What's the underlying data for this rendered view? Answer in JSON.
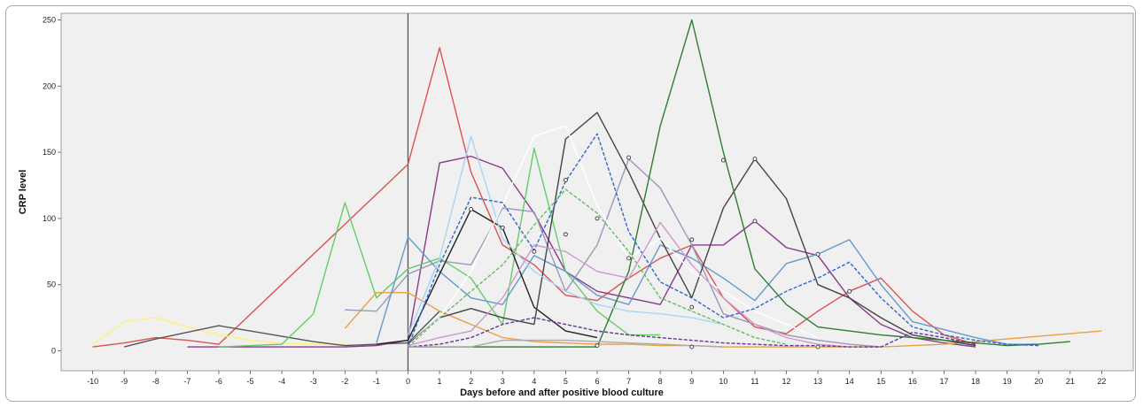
{
  "chart_data": {
    "type": "line",
    "title": "",
    "xlabel": "Days before and after positive blood culture",
    "ylabel": "CRP level",
    "xlim": [
      -11,
      23
    ],
    "ylim": [
      -15,
      255
    ],
    "x_ticks": [
      -10,
      -9,
      -8,
      -7,
      -6,
      -5,
      -4,
      -3,
      -2,
      -1,
      0,
      1,
      2,
      3,
      4,
      5,
      6,
      7,
      8,
      9,
      10,
      11,
      12,
      13,
      14,
      15,
      16,
      17,
      18,
      19,
      20,
      21,
      22
    ],
    "y_ticks": [
      0,
      50,
      100,
      150,
      200,
      250
    ],
    "grid": false,
    "legend": "none",
    "reference_line_x": 0,
    "series": [
      {
        "color": "#d9534f",
        "style": "solid",
        "x": [
          -10,
          -9,
          -8,
          -7,
          -6,
          0,
          1,
          2,
          3,
          4,
          5,
          6,
          7,
          8,
          9,
          10,
          11,
          12,
          13,
          14,
          15,
          16,
          17,
          18
        ],
        "y": [
          3,
          6,
          10,
          8,
          5,
          141,
          229,
          135,
          80,
          65,
          42,
          38,
          55,
          70,
          80,
          40,
          18,
          13,
          30,
          45,
          55,
          30,
          12,
          5
        ]
      },
      {
        "color": "#fff176",
        "style": "solid",
        "x": [
          -10,
          -9,
          -8,
          -7,
          -6,
          -5,
          -4,
          -3,
          -2
        ],
        "y": [
          5,
          22,
          25,
          18,
          12,
          8,
          6,
          5,
          5
        ]
      },
      {
        "color": "#555555",
        "style": "solid",
        "x": [
          -9,
          -8,
          -7,
          -6,
          -5,
          -4,
          -3,
          -2,
          -1,
          0,
          1
        ],
        "y": [
          3,
          9,
          14,
          19,
          15,
          11,
          7,
          4,
          5,
          6,
          30
        ]
      },
      {
        "color": "#8a3a8a",
        "style": "solid",
        "x": [
          -7,
          -6,
          -5,
          -4,
          -3,
          -2,
          -1,
          0,
          1,
          2,
          3,
          4,
          5,
          6,
          7,
          8,
          9,
          10,
          11,
          12,
          13,
          14,
          15,
          16,
          17,
          18
        ],
        "y": [
          3,
          3,
          3,
          3,
          3,
          3,
          4,
          8,
          142,
          147,
          138,
          104,
          60,
          45,
          40,
          35,
          80,
          80,
          98,
          78,
          72,
          40,
          20,
          10,
          6,
          3
        ]
      },
      {
        "color": "#66cc66",
        "style": "solid",
        "x": [
          -6,
          -4,
          -3,
          -2,
          -1,
          0,
          1,
          2,
          3,
          4,
          5,
          6,
          7,
          8
        ],
        "y": [
          3,
          5,
          28,
          112,
          40,
          62,
          70,
          55,
          20,
          153,
          60,
          30,
          12,
          12
        ]
      },
      {
        "color": "#e8a040",
        "style": "solid",
        "x": [
          -2,
          -1,
          0,
          1,
          2,
          3,
          4,
          5,
          6,
          7,
          8,
          9,
          10,
          11,
          12,
          13,
          14,
          15,
          16,
          17,
          18,
          19,
          20,
          21,
          22
        ],
        "y": [
          17,
          44,
          44,
          30,
          20,
          10,
          7,
          6,
          5,
          5,
          4,
          4,
          3,
          3,
          3,
          3,
          3,
          3,
          4,
          5,
          7,
          9,
          11,
          13,
          15
        ]
      },
      {
        "color": "#9999bb",
        "style": "solid",
        "x": [
          -2,
          -1,
          0,
          1,
          2,
          3,
          4,
          5,
          6,
          7,
          8,
          9,
          10,
          11,
          12,
          13,
          14,
          15
        ],
        "y": [
          31,
          30,
          58,
          68,
          65,
          108,
          105,
          45,
          80,
          145,
          123,
          80,
          28,
          20,
          12,
          8,
          5,
          3
        ]
      },
      {
        "color": "#6699cc",
        "style": "solid",
        "x": [
          -1,
          0,
          1,
          2,
          3,
          4,
          5,
          6,
          7,
          8,
          9,
          10,
          11,
          12,
          13,
          14,
          15,
          16,
          17,
          18,
          19,
          20
        ],
        "y": [
          6,
          86,
          60,
          40,
          35,
          72,
          60,
          42,
          35,
          80,
          70,
          55,
          38,
          66,
          73,
          84,
          50,
          22,
          16,
          10,
          5,
          5
        ]
      },
      {
        "color": "#222222",
        "style": "solid",
        "x": [
          -1,
          0,
          1,
          2,
          3,
          4,
          5,
          6
        ],
        "y": [
          5,
          8,
          58,
          107,
          93,
          33,
          15,
          10
        ]
      },
      {
        "color": "#444444",
        "style": "solid",
        "x": [
          0,
          1,
          2,
          3,
          4,
          5,
          6,
          7,
          8,
          9,
          10,
          11,
          12,
          13,
          14,
          15,
          16,
          17,
          18
        ],
        "y": [
          5,
          25,
          32,
          25,
          20,
          160,
          180,
          135,
          85,
          40,
          108,
          145,
          115,
          50,
          40,
          25,
          12,
          8,
          4
        ]
      },
      {
        "color": "#2e7d32",
        "style": "solid",
        "x": [
          0,
          1,
          2,
          3,
          4,
          5,
          6,
          7,
          8,
          9,
          10,
          11,
          12,
          13,
          14,
          15,
          16,
          17,
          18,
          19,
          20,
          21
        ],
        "y": [
          3,
          3,
          3,
          3,
          3,
          3,
          3,
          60,
          170,
          250,
          150,
          62,
          35,
          18,
          15,
          12,
          10,
          8,
          6,
          4,
          5,
          7
        ]
      },
      {
        "color": "#aad4f0",
        "style": "solid",
        "x": [
          0,
          1,
          2,
          3,
          4,
          5,
          6,
          7,
          8,
          9,
          10
        ],
        "y": [
          12,
          70,
          162,
          85,
          60,
          45,
          35,
          30,
          28,
          25,
          20
        ]
      },
      {
        "color": "#ffffff",
        "style": "solid",
        "x": [
          0,
          1,
          2,
          3,
          4,
          5,
          6,
          7,
          8,
          9,
          10,
          11,
          12,
          13
        ],
        "y": [
          4,
          25,
          60,
          110,
          162,
          170,
          110,
          70,
          85,
          60,
          45,
          30,
          20,
          10
        ]
      },
      {
        "color": "#3366cc",
        "style": "dashed",
        "x": [
          0,
          1,
          2,
          3,
          4,
          5,
          6,
          7,
          8,
          9,
          10,
          11,
          12,
          13,
          14,
          15,
          16,
          17,
          18,
          19,
          20
        ],
        "y": [
          3,
          65,
          116,
          112,
          76,
          128,
          164,
          90,
          52,
          40,
          25,
          32,
          45,
          55,
          67,
          40,
          18,
          12,
          8,
          5,
          4
        ]
      },
      {
        "color": "#66bb66",
        "style": "dashed",
        "x": [
          0,
          1,
          2,
          3,
          4,
          5,
          6,
          7,
          8,
          9,
          10,
          11,
          12
        ],
        "y": [
          3,
          25,
          45,
          65,
          95,
          122,
          104,
          75,
          40,
          30,
          20,
          10,
          5
        ]
      },
      {
        "color": "#cc99cc",
        "style": "solid",
        "x": [
          0,
          1,
          2,
          3,
          4,
          5,
          6,
          7,
          8,
          9,
          10,
          11,
          12,
          13,
          14
        ],
        "y": [
          4,
          10,
          15,
          40,
          80,
          75,
          60,
          55,
          97,
          65,
          40,
          20,
          10,
          5,
          3
        ]
      },
      {
        "color": "#663399",
        "style": "dashed",
        "x": [
          0,
          1,
          2,
          3,
          4,
          5,
          6,
          7,
          8,
          9,
          10,
          11,
          12,
          13,
          14,
          15,
          16,
          17,
          18
        ],
        "y": [
          3,
          5,
          10,
          20,
          25,
          20,
          15,
          12,
          10,
          8,
          6,
          5,
          4,
          4,
          3,
          3,
          14,
          10,
          5
        ]
      },
      {
        "color": "#aaaaaa",
        "style": "solid",
        "x": [
          0,
          2,
          3,
          4,
          5,
          6,
          7,
          8,
          9,
          10
        ],
        "y": [
          3,
          3,
          8,
          8,
          8,
          7,
          6,
          5,
          4,
          3
        ]
      }
    ],
    "markers": {
      "x": [
        2,
        3,
        4,
        5,
        5,
        6,
        6,
        7,
        7,
        9,
        9,
        9,
        10,
        11,
        11,
        13,
        13,
        14
      ],
      "y": [
        107,
        93,
        75,
        129,
        88,
        4,
        100,
        146,
        70,
        84,
        33,
        3,
        144,
        145,
        98,
        3,
        73,
        45
      ]
    }
  }
}
